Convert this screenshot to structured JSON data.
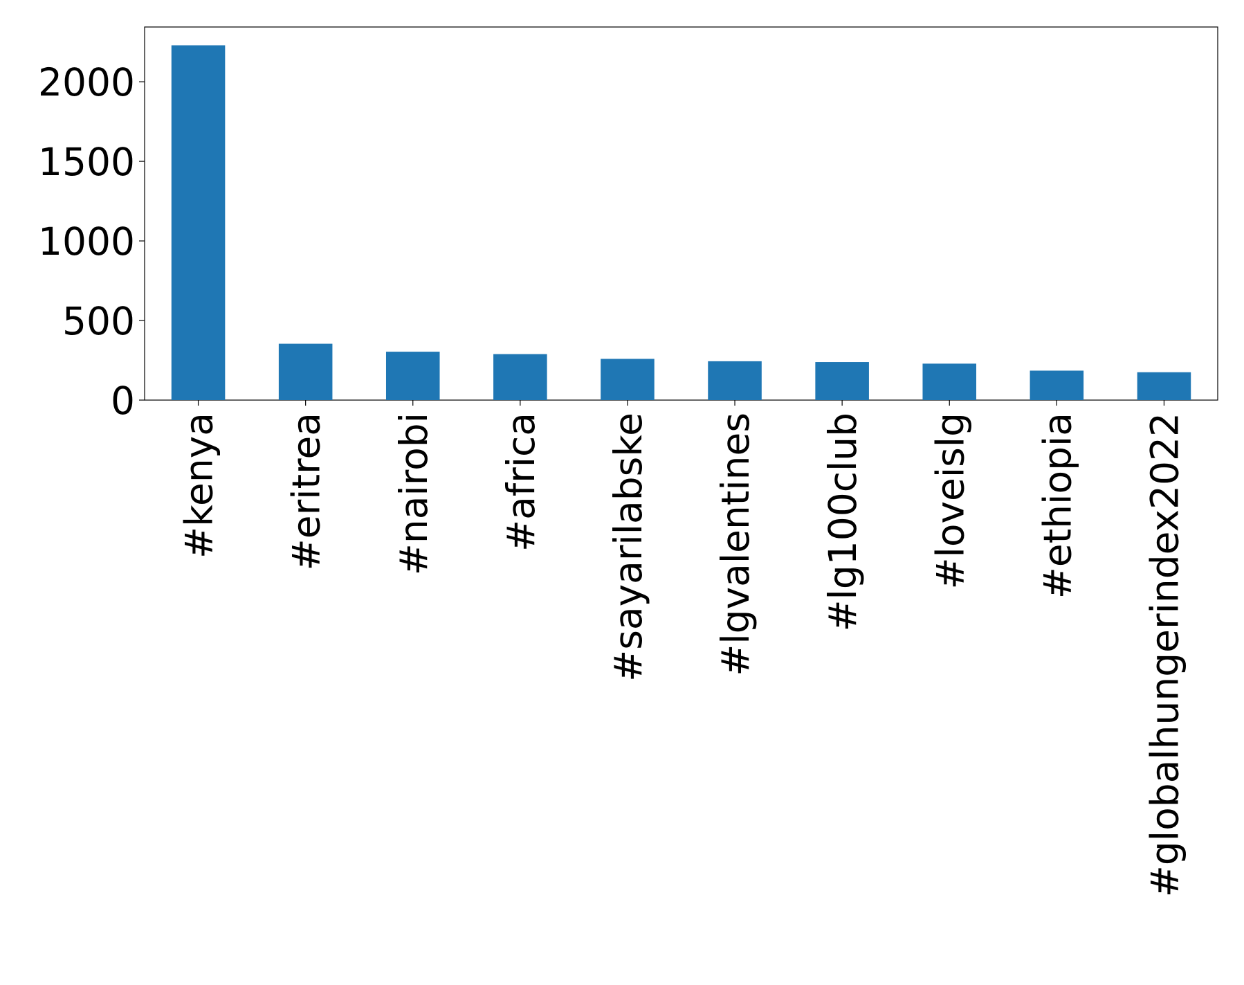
{
  "chart_data": {
    "type": "bar",
    "categories": [
      "#kenya",
      "#eritrea",
      "#nairobi",
      "#africa",
      "#sayarilabske",
      "#lgvalentines",
      "#lg100club",
      "#loveislg",
      "#ethiopia",
      "#globalhungerindex2022"
    ],
    "values": [
      2229,
      354,
      304,
      289,
      259,
      244,
      239,
      229,
      185,
      175
    ],
    "color": "#1f77b4",
    "ylim": [
      0,
      2344
    ],
    "yticks": [
      0,
      500,
      1000,
      1500,
      2000
    ],
    "grid": false
  }
}
